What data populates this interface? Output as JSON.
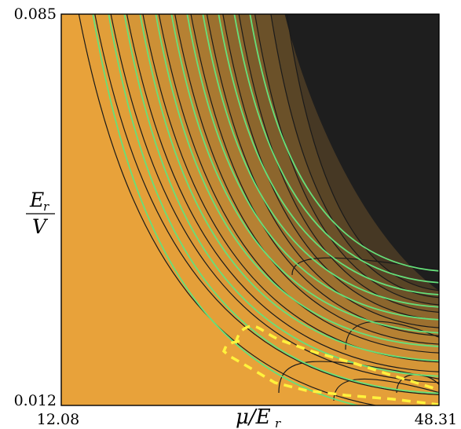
{
  "chart_data": {
    "type": "heatmap",
    "title": "",
    "xlabel": "μ/E_r",
    "ylabel": "E_r/V",
    "xlim": [
      12.08,
      48.31
    ],
    "ylim": [
      0.012,
      0.085
    ],
    "x_tick_labels": [
      "12.08",
      "48.31"
    ],
    "y_tick_labels": [
      "0.085",
      "0.012"
    ],
    "axis_labels": {
      "x_main": "μ/E",
      "x_sub": "r",
      "y_num_main": "E",
      "y_num_sub": "r",
      "y_den": "V"
    },
    "colors": {
      "low": "#E8A23A",
      "high": "#1E1E1E",
      "contour": "#1a1a1a",
      "green_contour": "#66E07A",
      "yellow_dashed": "#FFF23C"
    },
    "series": [
      {
        "name": "",
        "style": "black-contour",
        "count": 14
      },
      {
        "name": "",
        "style": "green-contour",
        "count": 11
      },
      {
        "name": "",
        "style": "yellow-dashed",
        "count": 1
      }
    ],
    "grid": false
  }
}
